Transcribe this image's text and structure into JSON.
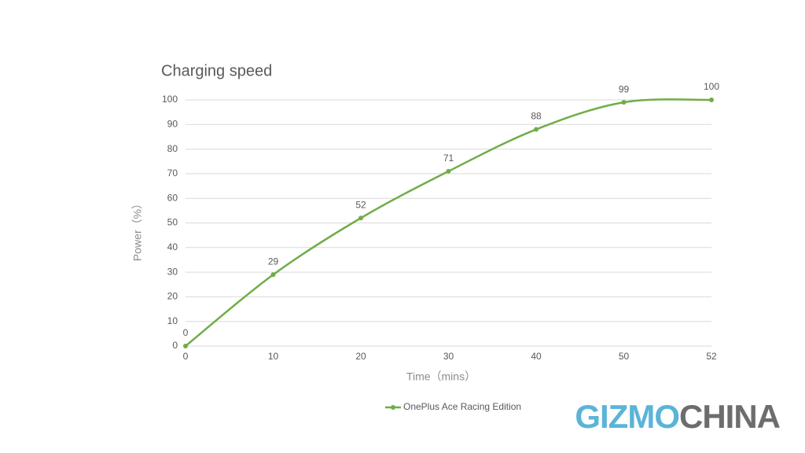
{
  "chart_data": {
    "type": "line",
    "title": "Charging speed",
    "x_label": "Time（mins）",
    "y_label": "Power（%）",
    "categories": [
      "0",
      "10",
      "20",
      "30",
      "40",
      "50",
      "52"
    ],
    "series": [
      {
        "name": "OnePlus Ace Racing Edition",
        "color": "#70ad47",
        "values": [
          0,
          29,
          52,
          71,
          88,
          99,
          100
        ]
      }
    ],
    "ylim": [
      0,
      100
    ],
    "yticks": [
      0,
      10,
      20,
      30,
      40,
      50,
      60,
      70,
      80,
      90,
      100
    ],
    "grid": true,
    "smooth": true,
    "data_labels": true,
    "legend": "bottom"
  },
  "watermark": [
    "GIZMO",
    "CHINA"
  ]
}
